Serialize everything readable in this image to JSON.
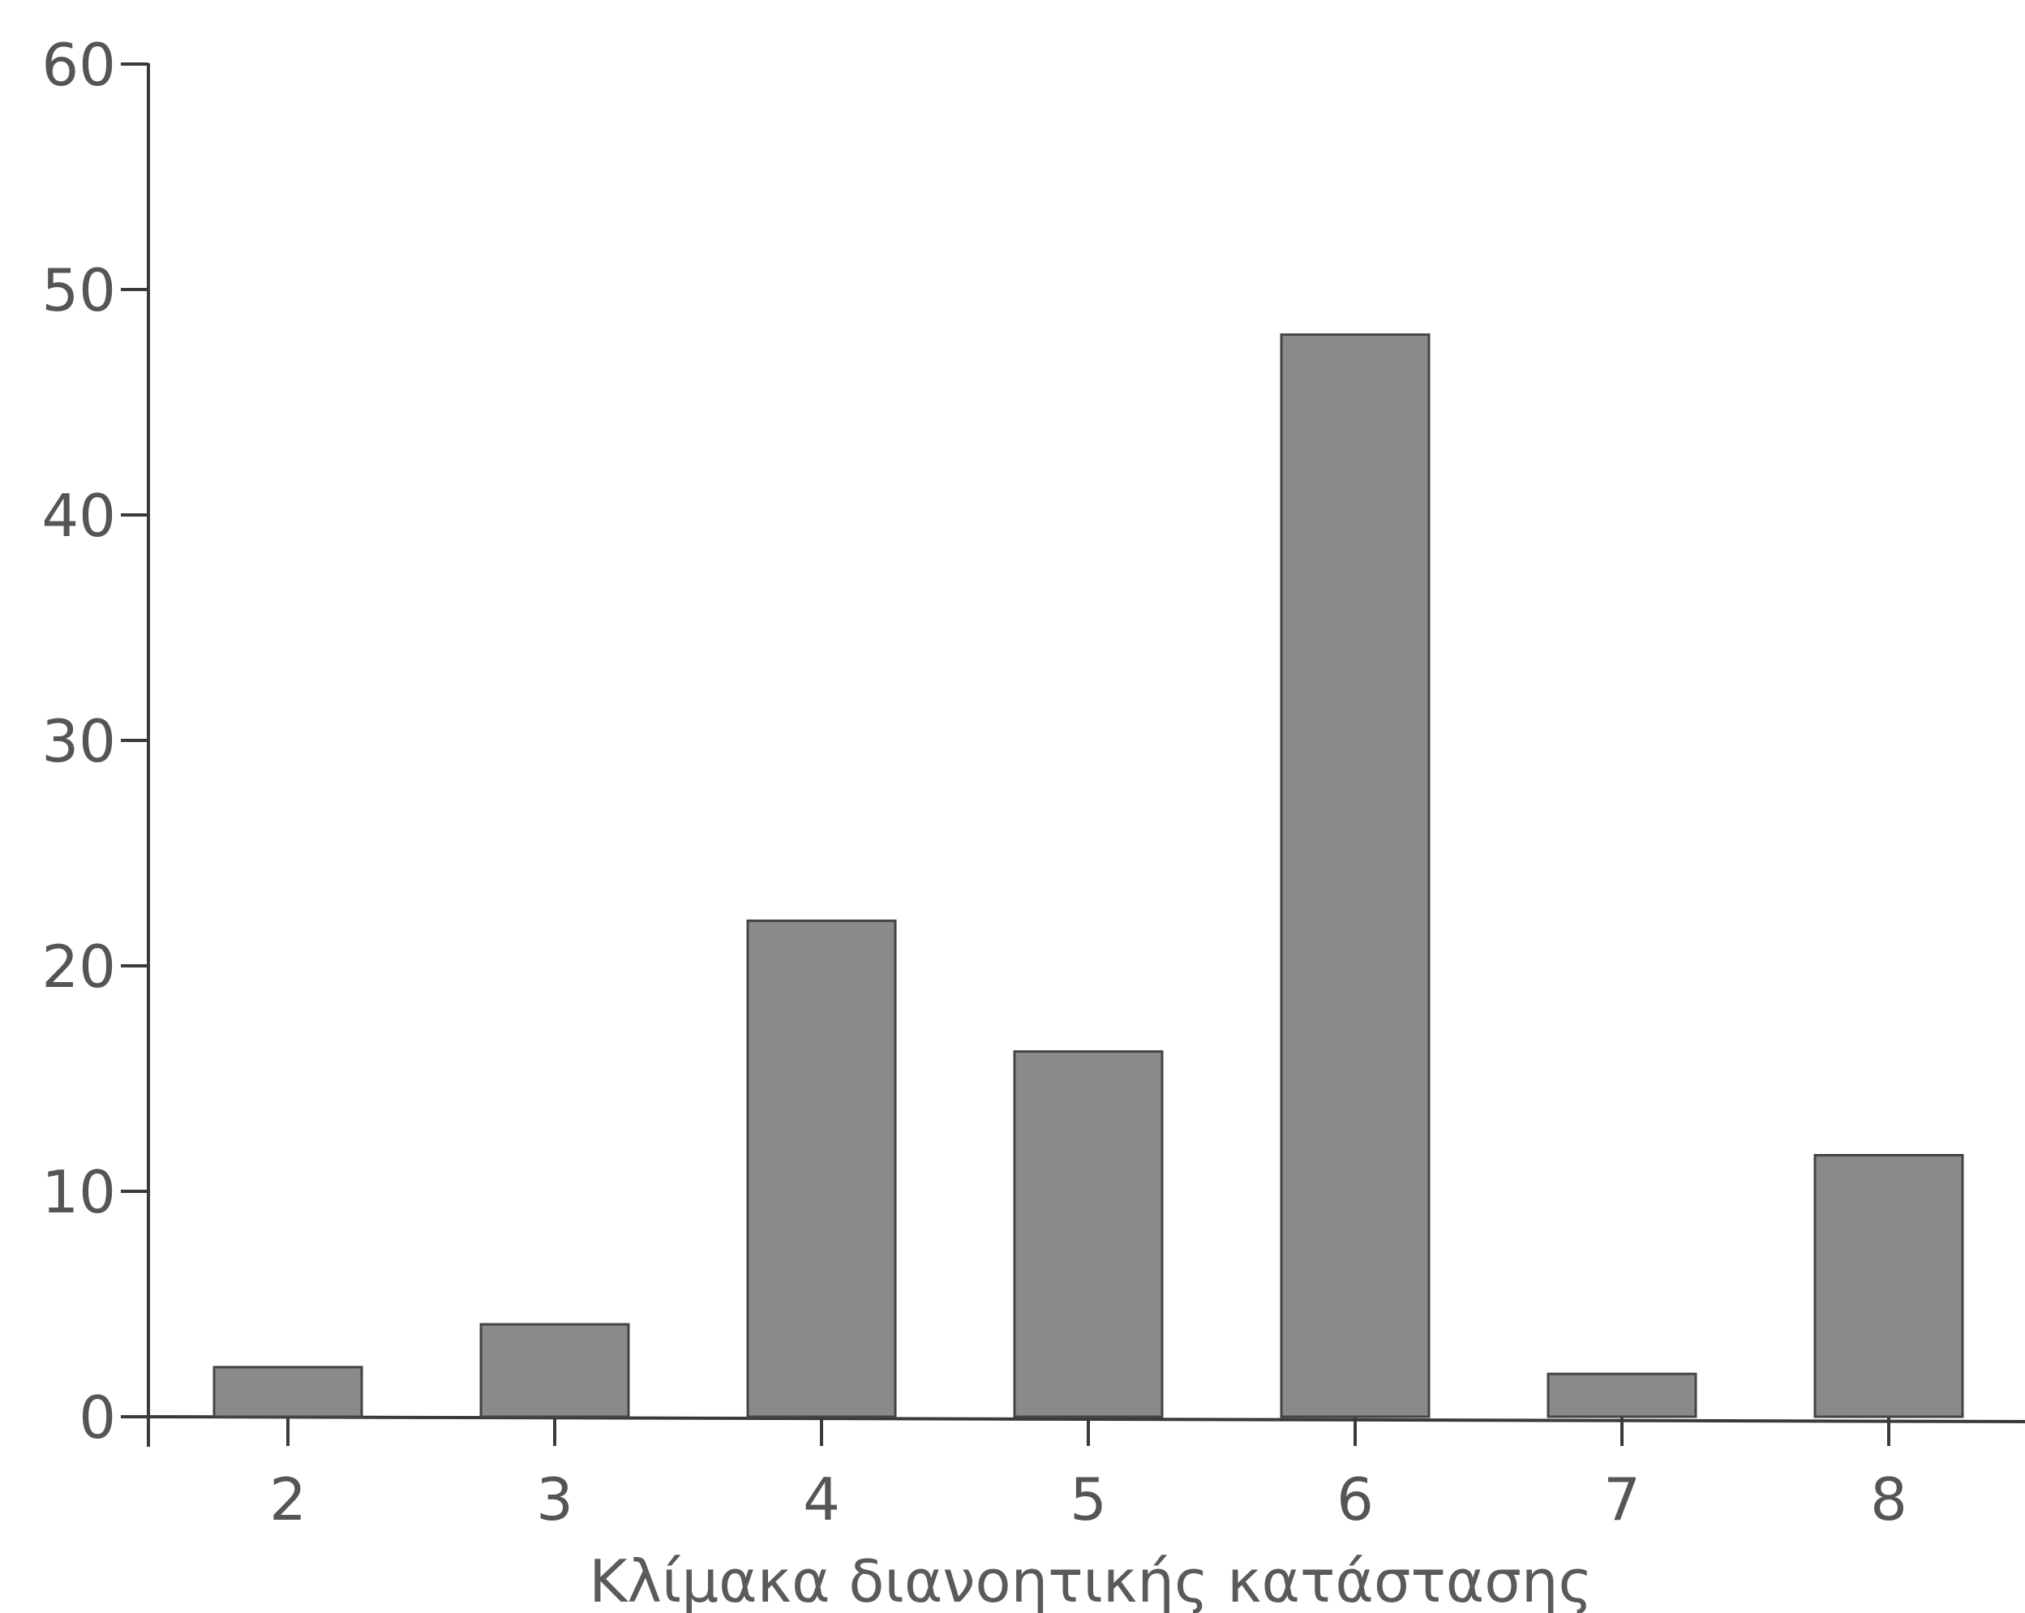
{
  "chart_data": {
    "type": "bar",
    "categories": [
      "2",
      "3",
      "4",
      "5",
      "6",
      "7",
      "8"
    ],
    "values": [
      2.2,
      4.1,
      22,
      16.2,
      48,
      1.9,
      11.6
    ],
    "title": "",
    "xlabel": "Κλίμακα διανοητικής κατάστασης",
    "ylabel": "",
    "ylim": [
      0,
      60
    ],
    "yticks": [
      "0",
      "10",
      "20",
      "30",
      "40",
      "50",
      "60"
    ],
    "grid": false,
    "bar_color": "#8a8a8a"
  }
}
